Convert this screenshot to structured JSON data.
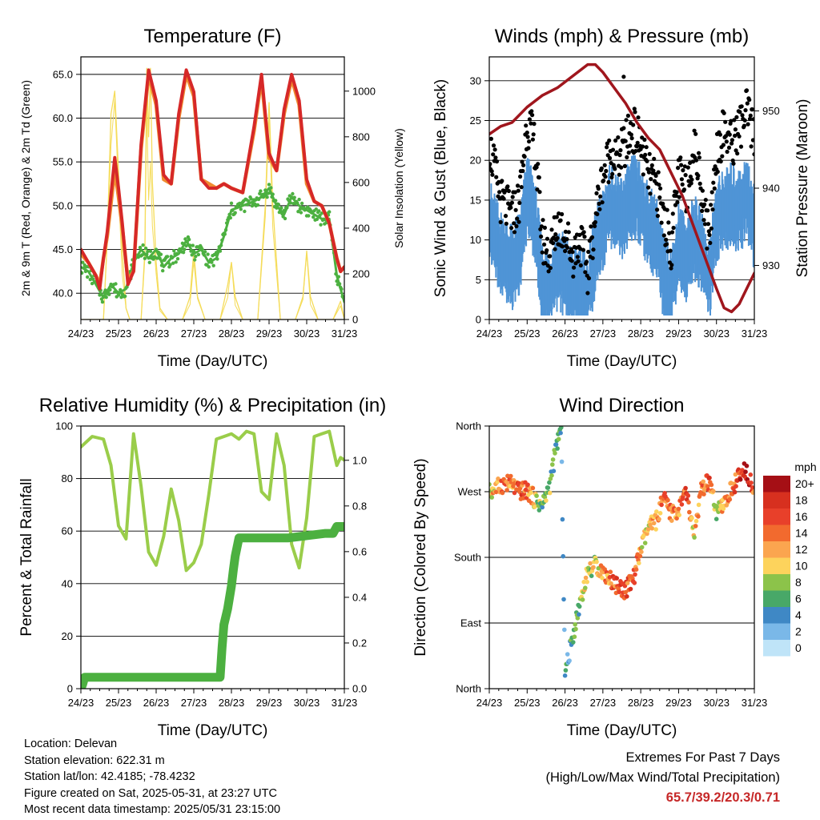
{
  "footer": {
    "location": "Location: Delevan",
    "elevation": "Station elevation: 622.31 m",
    "latlon": "Station lat/lon: 42.4185; -78.4232",
    "created": "Figure created on Sat, 2025-05-31, at 23:27 UTC",
    "recent": "Most recent data timestamp: 2025/05/31 23:15:00"
  },
  "extremes": {
    "title": "Extremes For Past 7 Days",
    "subtitle": "(High/Low/Max Wind/Total Precipitation)",
    "values": "65.7/39.2/20.3/0.71"
  },
  "chart_data": [
    {
      "type": "line",
      "title": "Temperature (F)",
      "xlabel": "Time (Day/UTC)",
      "ylabel": "2m & 9m T (Red, Orange) & 2m Td (Green)",
      "y2label": "Solar Insolation (Yellow)",
      "xticks": [
        "24/23",
        "25/23",
        "26/23",
        "27/23",
        "28/23",
        "29/23",
        "30/23",
        "31/23"
      ],
      "xlim": [
        0,
        7
      ],
      "ylim": [
        37,
        67
      ],
      "yticks": [
        "40.0",
        "45.0",
        "50.0",
        "55.0",
        "60.0",
        "65.0"
      ],
      "y2lim": [
        0,
        1150
      ],
      "y2ticks": [
        "0",
        "200",
        "400",
        "600",
        "800",
        "1000"
      ],
      "grid": true,
      "colors": {
        "t2m": "#d62828",
        "t9m": "#f08c30",
        "td": "#4cb040",
        "solar": "#f5dc5a"
      },
      "series": [
        {
          "x": [
            0,
            0.2,
            0.4,
            0.5,
            0.6,
            0.7,
            0.9,
            1.0,
            1.1,
            1.25,
            1.4,
            1.6,
            1.8,
            2.0,
            2.2,
            2.4,
            2.6,
            2.8,
            3.0,
            3.2,
            3.4,
            3.6,
            3.8,
            4.0,
            4.3,
            4.6,
            4.8,
            5.0,
            5.2,
            5.4,
            5.6,
            5.8,
            6.0,
            6.2,
            6.4,
            6.6,
            6.8,
            6.9,
            7.0
          ],
          "values": [
            45,
            43.5,
            42,
            40.5,
            44,
            47,
            55.5,
            52,
            48,
            41,
            42.5,
            57,
            65.5,
            62,
            53.5,
            52.5,
            60.5,
            65.5,
            63,
            53,
            52,
            52,
            52.5,
            52,
            51.5,
            59,
            65,
            56,
            54,
            61,
            65,
            62,
            53,
            50.5,
            50,
            48,
            44,
            42.5,
            43
          ]
        },
        {
          "x": [
            0,
            0.2,
            0.4,
            0.5,
            0.6,
            0.7,
            0.9,
            1.0,
            1.1,
            1.25,
            1.4,
            1.6,
            1.8,
            2.0,
            2.2,
            2.4,
            2.6,
            2.8,
            3.0,
            3.2,
            3.4,
            3.6,
            3.8,
            4.0,
            4.3,
            4.6,
            4.8,
            5.0,
            5.2,
            5.4,
            5.6,
            5.8,
            6.0,
            6.2,
            6.4,
            6.6,
            6.8,
            6.9,
            7.0
          ],
          "values": [
            44.5,
            43.5,
            42,
            41,
            44,
            46.5,
            54,
            51,
            47.5,
            41.5,
            42.5,
            56.5,
            65,
            61.5,
            53,
            52.5,
            60,
            65,
            62.5,
            53,
            52.5,
            52,
            52.5,
            52,
            51.5,
            58.5,
            64.5,
            55.5,
            54,
            60.5,
            64.5,
            61.5,
            52.5,
            50.5,
            50,
            48,
            44,
            42.5,
            43
          ]
        },
        {
          "x": [
            0,
            0.2,
            0.4,
            0.6,
            0.8,
            1.0,
            1.2,
            1.4,
            1.6,
            1.8,
            2.0,
            2.2,
            2.4,
            2.6,
            2.8,
            3.0,
            3.2,
            3.4,
            3.6,
            3.8,
            4.0,
            4.3,
            4.6,
            4.8,
            5.0,
            5.2,
            5.4,
            5.6,
            5.8,
            6.0,
            6.2,
            6.4,
            6.6,
            6.8,
            7.0
          ],
          "values": [
            43,
            42.5,
            41,
            39.5,
            41,
            40,
            40.5,
            43.5,
            45,
            44,
            45,
            43,
            44,
            44.5,
            46,
            44.5,
            45,
            43.5,
            44,
            46.5,
            49.5,
            50,
            50.5,
            51,
            52,
            50,
            49,
            51,
            50,
            49.5,
            49,
            48.5,
            48.5,
            42,
            39
          ]
        },
        {
          "x": [
            0,
            0.3,
            0.6,
            0.7,
            0.8,
            0.9,
            1.0,
            1.1,
            1.2,
            1.3,
            1.6,
            1.7,
            1.75,
            1.8,
            1.85,
            1.9,
            2.0,
            2.1,
            2.3,
            2.7,
            2.9,
            3.0,
            3.1,
            3.3,
            3.7,
            3.9,
            4.0,
            4.1,
            4.3,
            4.7,
            4.9,
            5.0,
            5.1,
            5.3,
            5.7,
            5.9,
            6.0,
            6.1,
            6.3,
            6.7,
            6.9,
            7.0
          ],
          "values": [
            0,
            0,
            0,
            350,
            900,
            1000,
            650,
            300,
            50,
            0,
            0,
            300,
            1100,
            800,
            1100,
            600,
            250,
            50,
            0,
            0,
            100,
            300,
            100,
            0,
            0,
            150,
            250,
            100,
            0,
            0,
            500,
            950,
            500,
            0,
            0,
            100,
            300,
            100,
            0,
            0,
            80,
            0
          ]
        }
      ],
      "series_roles": [
        "t2m",
        "t9m",
        "td",
        "solar"
      ]
    },
    {
      "type": "line",
      "title": "Winds (mph) & Pressure (mb)",
      "xlabel": "Time (Day/UTC)",
      "ylabel": "Sonic Wind & Gust (Blue, Black)",
      "y2label": "Station Pressure (Maroon)",
      "xticks": [
        "24/23",
        "25/23",
        "26/23",
        "27/23",
        "28/23",
        "29/23",
        "30/23",
        "31/23"
      ],
      "xlim": [
        0,
        7
      ],
      "ylim": [
        0,
        33
      ],
      "yticks": [
        "0",
        "5",
        "10",
        "15",
        "20",
        "25",
        "30"
      ],
      "y2lim": [
        923,
        957
      ],
      "y2ticks": [
        "930",
        "940",
        "950"
      ],
      "grid": true,
      "colors": {
        "wind": "#4f94d6",
        "gust": "#000000",
        "pressure": "#a0161d"
      },
      "series": [
        {
          "x": [
            0,
            0.3,
            0.6,
            0.8,
            1.0,
            1.2,
            1.4,
            1.6,
            1.8,
            2.0,
            2.2,
            2.4,
            2.6,
            2.8,
            3.0,
            3.2,
            3.4,
            3.6,
            3.8,
            4.0,
            4.2,
            4.4,
            4.6,
            4.8,
            5.0,
            5.2,
            5.4,
            5.6,
            5.8,
            6.0,
            6.2,
            6.4,
            6.6,
            6.8,
            7.0
          ],
          "values": [
            14,
            10,
            8,
            10,
            17,
            14,
            6,
            5,
            8,
            7,
            5,
            6,
            4,
            10,
            13,
            16,
            14,
            15,
            17,
            16,
            13,
            12,
            7,
            5,
            11,
            9,
            12,
            10,
            6,
            14,
            15,
            16,
            15,
            17,
            13
          ]
        },
        {
          "x": [
            0,
            0.3,
            0.6,
            0.8,
            1.0,
            1.2,
            1.4,
            1.6,
            1.8,
            2.0,
            2.2,
            2.4,
            2.6,
            2.8,
            3.0,
            3.2,
            3.4,
            3.6,
            3.8,
            4.0,
            4.2,
            4.4,
            4.6,
            4.8,
            5.0,
            5.2,
            5.4,
            5.6,
            5.8,
            6.0,
            6.2,
            6.4,
            6.6,
            6.8,
            7.0
          ],
          "values": [
            22,
            15,
            13,
            15,
            25,
            22,
            10,
            8,
            12,
            11,
            8,
            10,
            6,
            13,
            18,
            21,
            20,
            22,
            24,
            22,
            18,
            17,
            13,
            9,
            18,
            16,
            22,
            17,
            10,
            21,
            24,
            22,
            24,
            26,
            23
          ]
        },
        {
          "x": [
            0,
            0.3,
            0.6,
            1.0,
            1.4,
            1.8,
            2.2,
            2.6,
            2.8,
            3.0,
            3.3,
            3.6,
            3.9,
            4.2,
            4.5,
            4.8,
            5.1,
            5.4,
            5.7,
            6.0,
            6.2,
            6.4,
            6.6,
            6.8,
            7.0
          ],
          "values": [
            947,
            948,
            948.5,
            950.5,
            952,
            953,
            954.5,
            956,
            956,
            955,
            953,
            951,
            948.5,
            946.5,
            945,
            942,
            939,
            935,
            931,
            927,
            924.5,
            924,
            925,
            927,
            929
          ]
        }
      ],
      "series_roles": [
        "wind",
        "gust",
        "pressure"
      ]
    },
    {
      "type": "line",
      "title": "Relative Humidity (%) & Precipitation (in)",
      "xlabel": "Time (Day/UTC)",
      "ylabel": "Percent & Total Rainfall",
      "xticks": [
        "24/23",
        "25/23",
        "26/23",
        "27/23",
        "28/23",
        "29/23",
        "30/23",
        "31/23"
      ],
      "xlim": [
        0,
        7
      ],
      "ylim": [
        0,
        100
      ],
      "yticks": [
        "0",
        "20",
        "40",
        "60",
        "80",
        "100"
      ],
      "y2lim": [
        0,
        1.15
      ],
      "y2ticks": [
        "0.0",
        "0.2",
        "0.4",
        "0.6",
        "0.8",
        "1.0"
      ],
      "grid": true,
      "colors": {
        "rh": "#9acd4a",
        "precip": "#4cb040"
      },
      "series": [
        {
          "x": [
            0,
            0.3,
            0.6,
            0.8,
            1.0,
            1.2,
            1.4,
            1.6,
            1.8,
            2.0,
            2.2,
            2.4,
            2.6,
            2.8,
            3.0,
            3.2,
            3.4,
            3.6,
            3.8,
            4.0,
            4.2,
            4.4,
            4.6,
            4.8,
            5.0,
            5.2,
            5.4,
            5.6,
            5.8,
            6.0,
            6.2,
            6.4,
            6.6,
            6.8,
            6.9,
            7.0
          ],
          "values": [
            92,
            96,
            95,
            85,
            62,
            57,
            97,
            77,
            52,
            47,
            58,
            76,
            64,
            45,
            48,
            55,
            74,
            95,
            96,
            97,
            95,
            98,
            97,
            75,
            72,
            97,
            85,
            55,
            46,
            65,
            96,
            97,
            98,
            85,
            88,
            87
          ]
        },
        {
          "x": [
            0,
            0.05,
            0.1,
            0.5,
            1.0,
            2.0,
            3.0,
            3.7,
            3.75,
            3.8,
            3.9,
            4.0,
            4.05,
            4.1,
            4.2,
            4.3,
            4.5,
            5.0,
            5.5,
            6.0,
            6.5,
            6.7,
            6.8,
            7.0
          ],
          "values": [
            0,
            0.02,
            0.05,
            0.05,
            0.05,
            0.05,
            0.05,
            0.05,
            0.18,
            0.28,
            0.35,
            0.45,
            0.52,
            0.58,
            0.66,
            0.66,
            0.66,
            0.66,
            0.66,
            0.67,
            0.68,
            0.68,
            0.71,
            0.71
          ]
        }
      ],
      "series_roles": [
        "rh",
        "precip"
      ]
    },
    {
      "type": "scatter",
      "title": "Wind Direction",
      "xlabel": "Time (Day/UTC)",
      "ylabel": "Direction (Colored By Speed)",
      "xticks": [
        "24/23",
        "25/23",
        "26/23",
        "27/23",
        "28/23",
        "29/23",
        "30/23",
        "31/23"
      ],
      "xlim": [
        0,
        7
      ],
      "ylim": [
        0,
        360
      ],
      "yticks": [
        "North",
        "East",
        "South",
        "West",
        "North"
      ],
      "grid": true,
      "colorbar": {
        "title": "mph",
        "labels": [
          "20+",
          "18",
          "16",
          "14",
          "12",
          "10",
          "8",
          "6",
          "4",
          "2",
          "0"
        ],
        "colors": [
          "#a50f15",
          "#d7301f",
          "#e8402a",
          "#f26a2e",
          "#fba54f",
          "#fdd35c",
          "#8cc34a",
          "#48a868",
          "#3f88c5",
          "#7ab8e8",
          "#bfe4f8"
        ]
      },
      "series": [
        {
          "x": [
            0,
            0.2,
            0.4,
            0.6,
            0.8,
            1.0,
            1.2,
            1.4,
            1.6,
            1.7,
            1.8,
            1.9,
            2.0,
            2.2,
            2.4,
            2.6,
            2.8,
            3.0,
            3.2,
            3.4,
            3.6,
            3.8,
            4.0,
            4.2,
            4.4,
            4.6,
            4.8,
            5.0,
            5.2,
            5.4,
            5.6,
            5.8,
            6.0,
            6.2,
            6.4,
            6.6,
            6.8,
            7.0
          ],
          "values": [
            270,
            275,
            282,
            280,
            270,
            272,
            260,
            250,
            280,
            310,
            340,
            355,
            20,
            70,
            120,
            160,
            170,
            160,
            150,
            140,
            135,
            150,
            190,
            220,
            230,
            260,
            240,
            245,
            270,
            210,
            270,
            285,
            240,
            250,
            275,
            290,
            300,
            270
          ],
          "speed": [
            10,
            12,
            14,
            12,
            16,
            14,
            10,
            6,
            8,
            6,
            6,
            4,
            4,
            6,
            8,
            10,
            8,
            12,
            14,
            16,
            16,
            14,
            12,
            10,
            12,
            14,
            14,
            12,
            16,
            10,
            14,
            16,
            8,
            12,
            14,
            16,
            18,
            14
          ]
        }
      ]
    }
  ]
}
